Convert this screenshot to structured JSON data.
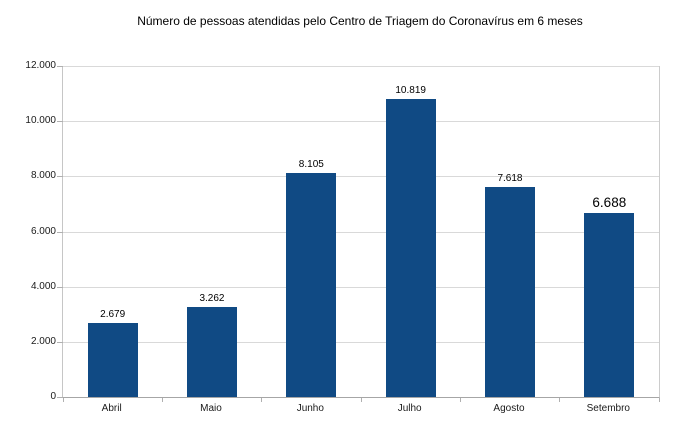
{
  "chart_data": {
    "type": "bar",
    "title": "Número de pessoas atendidas pelo Centro de Triagem do Coronavírus em 6 meses",
    "categories": [
      "Abril",
      "Maio",
      "Junho",
      "Julho",
      "Agosto",
      "Setembro"
    ],
    "values": [
      2679,
      3262,
      8105,
      10819,
      7618,
      6688
    ],
    "value_labels": [
      "2.679",
      "3.262",
      "8.105",
      "10.819",
      "7.618",
      "6.688"
    ],
    "emphasized_label_index": 5,
    "xlabel": "",
    "ylabel": "",
    "ylim": [
      0,
      12000
    ],
    "yticks": [
      0,
      2000,
      4000,
      6000,
      8000,
      10000,
      12000
    ],
    "ytick_labels": [
      "0",
      "2.000",
      "4.000",
      "6.000",
      "8.000",
      "10.000",
      "12.000"
    ],
    "grid": true,
    "legend": false,
    "colors": {
      "bar": "#104a84",
      "gridline": "#d9d9d9",
      "axis": "#b0b0b0",
      "text": "#1a1a1a"
    }
  }
}
